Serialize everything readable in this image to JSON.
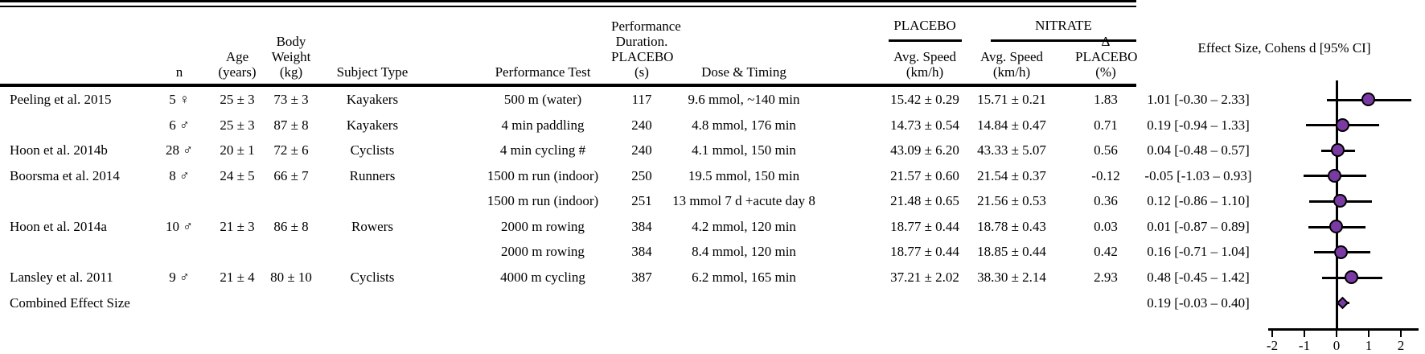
{
  "table": {
    "headers": {
      "n": "n",
      "age": "Age\n(years)",
      "weight": "Body\nWeight\n(kg)",
      "subject": "Subject Type",
      "test": "Performance Test",
      "duration": "Performance\nDuration.\nPLACEBO\n(s)",
      "dose": "Dose & Timing",
      "placebo_group": "PLACEBO",
      "nitrate_group": "NITRATE",
      "avg_speed_placebo": "Avg. Speed\n(km/h)",
      "avg_speed_nitrate": "Avg. Speed\n(km/h)",
      "delta": "Δ\nPLACEBO\n(%)",
      "effect": "Effect Size, Cohens d [95% CI]"
    },
    "rows": [
      {
        "study": "Peeling et al. 2015",
        "n": "5 ♀",
        "age": "25 ± 3",
        "weight": "73 ± 3",
        "subject": "Kayakers",
        "test": "500 m (water)",
        "duration": "117",
        "dose": "9.6 mmol, ~140 min",
        "placebo_speed": "15.42 ± 0.29",
        "nitrate_speed": "15.71 ± 0.21",
        "delta": "1.83",
        "effect": "1.01 [-0.30 – 2.33]"
      },
      {
        "study": "",
        "n": "6 ♂",
        "age": "25 ± 3",
        "weight": "87 ± 8",
        "subject": "Kayakers",
        "test": "4 min paddling",
        "duration": "240",
        "dose": "4.8 mmol, 176 min",
        "placebo_speed": "14.73 ± 0.54",
        "nitrate_speed": "14.84 ± 0.47",
        "delta": "0.71",
        "effect": "0.19 [-0.94 – 1.33]"
      },
      {
        "study": "Hoon et al. 2014b",
        "n": "28 ♂",
        "age": "20 ± 1",
        "weight": "72 ± 6",
        "subject": "Cyclists",
        "test": "4 min cycling #",
        "duration": "240",
        "dose": "4.1 mmol, 150 min",
        "placebo_speed": "43.09 ± 6.20",
        "nitrate_speed": "43.33 ± 5.07",
        "delta": "0.56",
        "effect": "0.04 [-0.48 – 0.57]"
      },
      {
        "study": "Boorsma et al. 2014",
        "n": "8 ♂",
        "age": "24 ± 5",
        "weight": "66 ± 7",
        "subject": "Runners",
        "test": "1500 m run (indoor)",
        "duration": "250",
        "dose": "19.5 mmol, 150 min",
        "placebo_speed": "21.57 ± 0.60",
        "nitrate_speed": "21.54 ± 0.37",
        "delta": "-0.12",
        "effect": "-0.05 [-1.03 – 0.93]"
      },
      {
        "study": "",
        "n": "",
        "age": "",
        "weight": "",
        "subject": "",
        "test": "1500 m run (indoor)",
        "duration": "251",
        "dose": "13 mmol 7 d +acute day 8",
        "placebo_speed": "21.48 ± 0.65",
        "nitrate_speed": "21.56 ± 0.53",
        "delta": "0.36",
        "effect": "0.12 [-0.86 – 1.10]"
      },
      {
        "study": "Hoon et al. 2014a",
        "n": "10 ♂",
        "age": "21 ± 3",
        "weight": "86 ± 8",
        "subject": "Rowers",
        "test": "2000 m rowing",
        "duration": "384",
        "dose": "4.2 mmol, 120 min",
        "placebo_speed": "18.77 ± 0.44",
        "nitrate_speed": "18.78 ± 0.43",
        "delta": "0.03",
        "effect": "0.01 [-0.87 – 0.89]"
      },
      {
        "study": "",
        "n": "",
        "age": "",
        "weight": "",
        "subject": "",
        "test": "2000 m rowing",
        "duration": "384",
        "dose": "8.4 mmol, 120 min",
        "placebo_speed": "18.77 ± 0.44",
        "nitrate_speed": "18.85 ± 0.44",
        "delta": "0.42",
        "effect": "0.16 [-0.71 – 1.04]"
      },
      {
        "study": "Lansley et al. 2011",
        "n": "9 ♂",
        "age": "21 ± 4",
        "weight": "80 ± 10",
        "subject": "Cyclists",
        "test": "4000 m cycling",
        "duration": "387",
        "dose": "6.2 mmol, 165 min",
        "placebo_speed": "37.21 ± 2.02",
        "nitrate_speed": "38.30 ± 2.14",
        "delta": "2.93",
        "effect": "0.48 [-0.45 – 1.42]"
      },
      {
        "study": "Combined Effect Size",
        "n": "",
        "age": "",
        "weight": "",
        "subject": "",
        "test": "",
        "duration": "",
        "dose": "",
        "placebo_speed": "",
        "nitrate_speed": "",
        "delta": "",
        "effect": "0.19 [-0.03 – 0.40]"
      }
    ]
  },
  "chart_data": {
    "type": "scatter",
    "subtype": "forest-plot",
    "title": "Effect Size, Cohens d [95% CI]",
    "xlabel": "Cohens d",
    "xlim": [
      -2.5,
      2.5
    ],
    "xticks": [
      -2,
      -1,
      0,
      1,
      2
    ],
    "zero_line": 0,
    "grid": false,
    "marker_color": "#7a3aa4",
    "points": [
      {
        "label": "Peeling et al. 2015 (5 ♀, 500 m water)",
        "d": 1.01,
        "lo": -0.3,
        "hi": 2.33,
        "marker": "circle"
      },
      {
        "label": "Peeling et al. 2015 (6 ♂, 4 min paddling)",
        "d": 0.19,
        "lo": -0.94,
        "hi": 1.33,
        "marker": "circle"
      },
      {
        "label": "Hoon et al. 2014b",
        "d": 0.04,
        "lo": -0.48,
        "hi": 0.57,
        "marker": "circle"
      },
      {
        "label": "Boorsma et al. 2014 (19.5 mmol)",
        "d": -0.05,
        "lo": -1.03,
        "hi": 0.93,
        "marker": "circle"
      },
      {
        "label": "Boorsma et al. 2014 (13 mmol)",
        "d": 0.12,
        "lo": -0.86,
        "hi": 1.1,
        "marker": "circle"
      },
      {
        "label": "Hoon et al. 2014a (4.2 mmol)",
        "d": 0.01,
        "lo": -0.87,
        "hi": 0.89,
        "marker": "circle"
      },
      {
        "label": "Hoon et al. 2014a (8.4 mmol)",
        "d": 0.16,
        "lo": -0.71,
        "hi": 1.04,
        "marker": "circle"
      },
      {
        "label": "Lansley et al. 2011",
        "d": 0.48,
        "lo": -0.45,
        "hi": 1.42,
        "marker": "circle"
      },
      {
        "label": "Combined Effect Size",
        "d": 0.19,
        "lo": -0.03,
        "hi": 0.4,
        "marker": "diamond"
      }
    ]
  }
}
